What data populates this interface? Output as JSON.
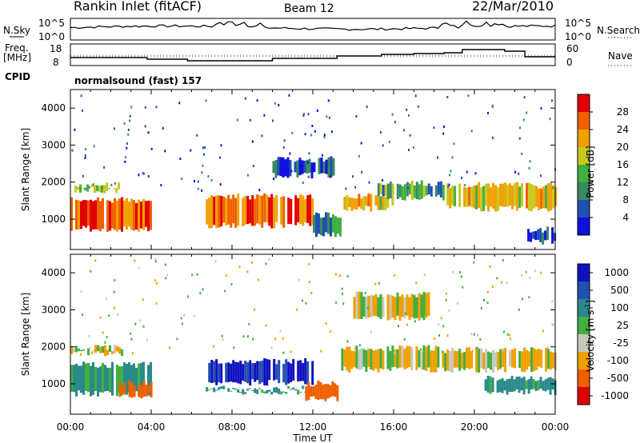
{
  "header": {
    "station": "Rankin Inlet (fitACF)",
    "beam": "Beam 12",
    "date": "22/Mar/2010"
  },
  "top_panels": {
    "nsky_label": "N.Sky",
    "nsky_ticks": [
      "10^5",
      "10^0"
    ],
    "nsearch_label": "N.Search",
    "nsearch_ticks": [
      "10^5",
      "10^0"
    ],
    "freq_label": "Freq.",
    "freq_unit": "[MHz]",
    "freq_ticks": [
      "18",
      "8"
    ],
    "nave_label": "Nave",
    "nave_ticks": [
      "60",
      "0"
    ],
    "cpid_label": "CPID",
    "cpid_value": "normalsound (fast) 157"
  },
  "x_axis": {
    "title": "Time UT",
    "ticks": [
      "00:00",
      "04:00",
      "08:00",
      "12:00",
      "16:00",
      "20:00",
      "00:00"
    ]
  },
  "colors": {
    "power_scale": [
      "#1010e0",
      "#2050b0",
      "#3a8a60",
      "#40b040",
      "#c8c820",
      "#f0a000",
      "#f06000",
      "#e00000"
    ],
    "velocity_scale": [
      "#1010c0",
      "#2050b0",
      "#2a8a8a",
      "#40b040",
      "#c8c8c0",
      "#f0a000",
      "#f06000",
      "#e00000"
    ]
  },
  "chart_data": [
    {
      "type": "heatmap",
      "name": "power",
      "xlabel": "Time UT",
      "ylabel": "Slant Range [km]",
      "xlim": [
        0,
        24
      ],
      "ylim": [
        180,
        4500
      ],
      "yticks": [
        "1000",
        "2000",
        "3000",
        "4000"
      ],
      "colorbar_label": "Power [dB]",
      "colorbar_ticks": [
        "28",
        "24",
        "20",
        "16",
        "12",
        "8",
        "4"
      ],
      "colorbar_range": [
        0,
        32
      ],
      "bands": [
        {
          "t0": 0.0,
          "t1": 4.0,
          "r0": 650,
          "r1": 1600,
          "level": 26
        },
        {
          "t0": 0.2,
          "t1": 2.4,
          "r0": 1700,
          "r1": 2000,
          "level": 18
        },
        {
          "t0": 6.7,
          "t1": 12.0,
          "r0": 750,
          "r1": 1700,
          "level": 26
        },
        {
          "t0": 10.0,
          "t1": 13.0,
          "r0": 2100,
          "r1": 2700,
          "level": 6
        },
        {
          "t0": 12.0,
          "t1": 13.4,
          "r0": 500,
          "r1": 1200,
          "level": 10
        },
        {
          "t0": 13.4,
          "t1": 16.0,
          "r0": 1200,
          "r1": 1700,
          "level": 20
        },
        {
          "t0": 15.2,
          "t1": 18.5,
          "r0": 1500,
          "r1": 2050,
          "level": 12
        },
        {
          "t0": 18.5,
          "t1": 24.0,
          "r0": 1200,
          "r1": 2000,
          "level": 20
        },
        {
          "t0": 22.5,
          "t1": 24.0,
          "r0": 300,
          "r1": 800,
          "level": 6
        }
      ]
    },
    {
      "type": "heatmap",
      "name": "velocity",
      "xlabel": "Time UT",
      "ylabel": "Slant Range [km]",
      "xlim": [
        0,
        24
      ],
      "ylim": [
        180,
        4500
      ],
      "yticks": [
        "1000",
        "2000",
        "3000",
        "4000"
      ],
      "colorbar_label": "Velocity [m s",
      "colorbar_label_sup": "-1",
      "colorbar_label_end": "]",
      "colorbar_ticks": [
        "1000",
        "500",
        "100",
        "25",
        "-25",
        "-100",
        "-500",
        "-1000"
      ],
      "bands": [
        {
          "t0": 0.0,
          "t1": 4.0,
          "r0": 650,
          "r1": 1600,
          "v": 150
        },
        {
          "t0": 0.0,
          "t1": 2.5,
          "r0": 1750,
          "r1": 2050,
          "v": 0
        },
        {
          "t0": 2.4,
          "t1": 4.0,
          "r0": 600,
          "r1": 1100,
          "v": -300
        },
        {
          "t0": 6.7,
          "t1": 12.0,
          "r0": 950,
          "r1": 1700,
          "v": 800
        },
        {
          "t0": 6.7,
          "t1": 12.0,
          "r0": 700,
          "r1": 950,
          "v": 150
        },
        {
          "t0": 11.5,
          "t1": 13.2,
          "r0": 500,
          "r1": 1100,
          "v": -300
        },
        {
          "t0": 13.4,
          "t1": 18.5,
          "r0": 1300,
          "r1": 2050,
          "v": 0
        },
        {
          "t0": 18.5,
          "t1": 24.0,
          "r0": 1300,
          "r1": 2000,
          "v": 0
        },
        {
          "t0": 20.5,
          "t1": 24.0,
          "r0": 700,
          "r1": 1250,
          "v": 150
        },
        {
          "t0": 14.0,
          "t1": 18.0,
          "r0": 2700,
          "r1": 3500,
          "v": 0
        }
      ]
    }
  ]
}
